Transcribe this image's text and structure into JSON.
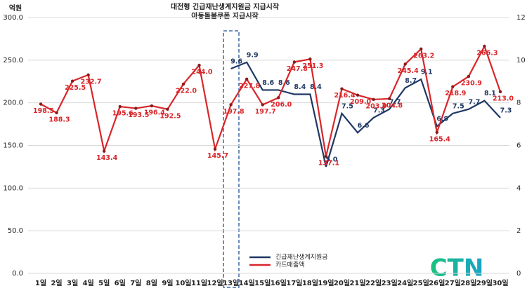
{
  "chart_data": {
    "type": "line",
    "annotations": [
      "대전형 긴급재난생계지원금 지급시작",
      "아동돌봄쿠폰 지급시작"
    ],
    "y_label": "억원",
    "logo": "CTN",
    "categories": [
      "1일",
      "2일",
      "3일",
      "4일",
      "5일",
      "6일",
      "7일",
      "8일",
      "9일",
      "10일",
      "11일",
      "12일",
      "13일",
      "14일",
      "15일",
      "16일",
      "17일",
      "18일",
      "19일",
      "20일",
      "21일",
      "22일",
      "23일",
      "24일",
      "25일",
      "26일",
      "27일",
      "28일",
      "29일",
      "30일"
    ],
    "series": [
      {
        "name": "긴급재난생계지원금",
        "color": "#1f3864",
        "axis": "y2",
        "values": [
          null,
          null,
          null,
          null,
          null,
          null,
          null,
          null,
          null,
          null,
          null,
          null,
          9.6,
          9.9,
          8.6,
          8.6,
          8.4,
          8.4,
          5.0,
          7.5,
          6.6,
          7.3,
          7.7,
          8.7,
          9.1,
          6.9,
          7.5,
          7.7,
          8.1,
          7.3
        ],
        "value_labels": [
          null,
          null,
          null,
          null,
          null,
          null,
          null,
          null,
          null,
          null,
          null,
          null,
          "9.6",
          "9.9",
          "8.6",
          "8.6",
          "8.4",
          "8.4",
          "5.0",
          "7.5",
          "6.6",
          "7.3",
          "7.7",
          "8.7",
          "9.1",
          "6.9",
          "7.5",
          "7.7",
          "8.1",
          "7.3"
        ]
      },
      {
        "name": "카드매출액",
        "color": "#d9262a",
        "values": [
          198.5,
          188.3,
          225.5,
          232.7,
          143.4,
          195.6,
          193.5,
          196.4,
          192.5,
          222.0,
          244.0,
          145.7,
          197.8,
          227.8,
          197.7,
          206.0,
          247.8,
          251.3,
          137.1,
          216.4,
          209.0,
          203.9,
          204.8,
          245.4,
          263.2,
          165.4,
          218.9,
          230.9,
          266.3,
          213.0
        ],
        "value_labels": [
          "198.5",
          "188.3",
          "225.5",
          "232.7",
          "143.4",
          "195.6",
          "193.5",
          "196.4",
          "192.5",
          "222.0",
          "244.0",
          "145.7",
          "197.8",
          "227.8",
          "197.7",
          "206.0",
          "247.8",
          "251.3",
          "137.1",
          "216.4",
          "209.0",
          "203.9",
          "204.8",
          "245.4",
          "263.2",
          "165.4",
          "218.9",
          "230.9",
          "266.3",
          "213.0"
        ]
      }
    ],
    "ylim": [
      0,
      300
    ],
    "yticks": [
      {
        "value": 0,
        "label": "0.0"
      },
      {
        "value": 50,
        "label": "50.0"
      },
      {
        "value": 100,
        "label": "100.0"
      },
      {
        "value": 150,
        "label": "150.0"
      },
      {
        "value": 200,
        "label": "200.0"
      },
      {
        "value": 250,
        "label": "250.0"
      },
      {
        "value": 300,
        "label": "300.0"
      }
    ],
    "y2lim": [
      0,
      12
    ],
    "y2ticks": [
      0,
      2,
      4,
      6,
      8,
      10,
      12
    ],
    "grid": true
  }
}
